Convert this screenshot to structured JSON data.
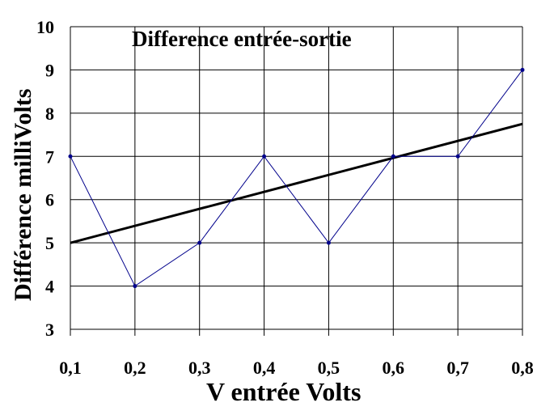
{
  "chart_data": {
    "type": "line",
    "title": "Difference entrée-sortie",
    "xlabel": "V entrée  Volts",
    "ylabel": "Différence milliVolts",
    "x": [
      0.1,
      0.2,
      0.3,
      0.4,
      0.5,
      0.6,
      0.7,
      0.8
    ],
    "x_tick_labels": [
      "0,1",
      "0,2",
      "0,3",
      "0,4",
      "0,5",
      "0,6",
      "0,7",
      "0,8"
    ],
    "y_ticks": [
      3,
      4,
      5,
      6,
      7,
      8,
      9,
      10
    ],
    "y_tick_labels": [
      "3",
      "4",
      "5",
      "6",
      "7",
      "8",
      "9",
      "10"
    ],
    "xlim": [
      0.1,
      0.8
    ],
    "ylim": [
      3,
      10
    ],
    "grid": true,
    "series": [
      {
        "values": [
          7,
          4,
          5,
          7,
          5,
          7,
          7,
          9
        ],
        "color": "#00008b",
        "markers": true
      }
    ],
    "trendline": {
      "type": "linear",
      "start": [
        0.1,
        5.0
      ],
      "end": [
        0.8,
        7.75
      ],
      "color": "#000000"
    }
  }
}
